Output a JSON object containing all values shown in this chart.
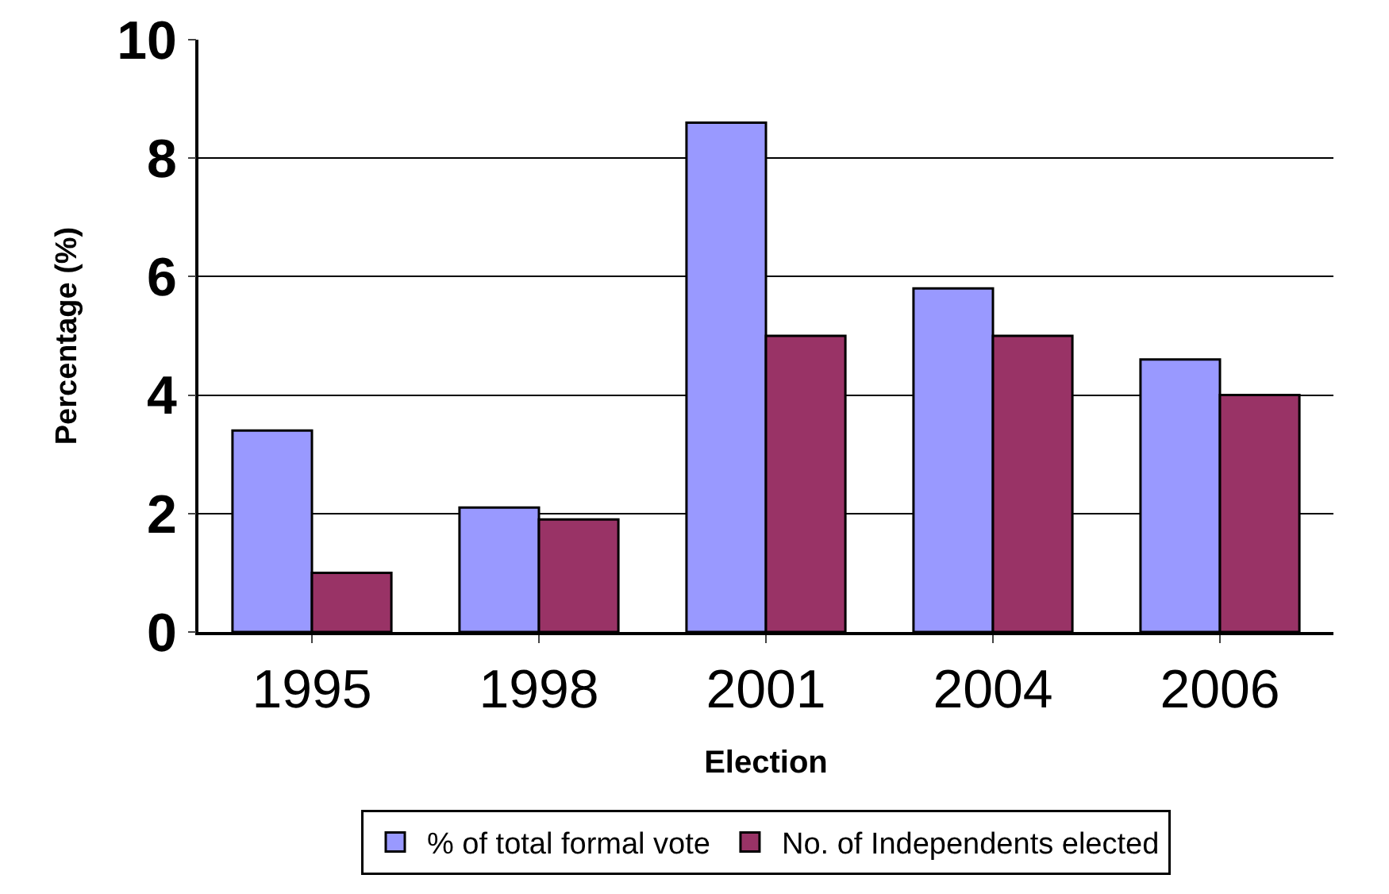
{
  "chart_data": {
    "type": "bar",
    "xlabel": "Election",
    "ylabel": "Percentage (%)",
    "categories": [
      "1995",
      "1998",
      "2001",
      "2004",
      "2006"
    ],
    "series": [
      {
        "name": "% of total formal vote",
        "color": "#9999ff",
        "values": [
          3.4,
          2.1,
          8.6,
          5.8,
          4.6
        ]
      },
      {
        "name": "No. of Independents elected",
        "color": "#993366",
        "values": [
          1.0,
          1.9,
          5.0,
          5.0,
          4.0
        ]
      }
    ],
    "ylim": [
      0,
      10
    ],
    "yticks": [
      0,
      2,
      4,
      6,
      8,
      10
    ],
    "grid": "y",
    "legend": "bottom"
  }
}
